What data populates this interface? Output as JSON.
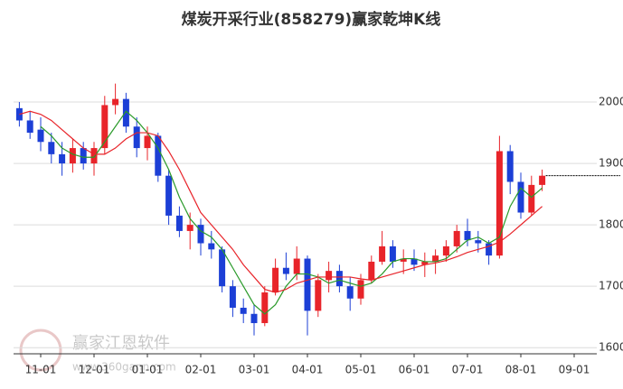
{
  "chart_data": {
    "type": "candlestick",
    "title": "煤炭开采行业(858279)赢家乾坤K线",
    "watermark": "赢家江恩软件",
    "watermark_url": "www.360gann.com",
    "categories": [
      null,
      null,
      "11-01",
      null,
      null,
      null,
      null,
      "12-01",
      null,
      null,
      null,
      null,
      "01-01",
      null,
      null,
      null,
      null,
      "02-01",
      null,
      null,
      null,
      null,
      "03-01",
      null,
      null,
      null,
      null,
      "04-01",
      null,
      null,
      null,
      null,
      "05-01",
      null,
      null,
      null,
      null,
      "06-01",
      null,
      null,
      null,
      null,
      "07-01",
      null,
      null,
      null,
      null,
      "08-01",
      null,
      null,
      null,
      null,
      "09-01"
    ],
    "open": [
      1990,
      1970,
      1955,
      1935,
      1915,
      1900,
      1925,
      1900,
      1925,
      1995,
      2005,
      1960,
      1925,
      1945,
      1880,
      1815,
      1790,
      1800,
      1770,
      1760,
      1700,
      1665,
      1655,
      1640,
      1690,
      1730,
      1720,
      1745,
      1660,
      1710,
      1725,
      1700,
      1680,
      1710,
      1740,
      1765,
      1740,
      1745,
      1735,
      1740,
      1750,
      1765,
      1790,
      1775,
      1770,
      1750,
      1920,
      1870,
      1820,
      1865,
      null,
      null,
      null
    ],
    "high": [
      2000,
      1985,
      1975,
      1950,
      1935,
      1940,
      1935,
      1935,
      2010,
      2030,
      2015,
      1975,
      1960,
      1950,
      1890,
      1830,
      1820,
      1810,
      1790,
      1765,
      1710,
      1680,
      1670,
      1700,
      1745,
      1755,
      1765,
      1750,
      1720,
      1740,
      1735,
      1715,
      1720,
      1750,
      1790,
      1775,
      1760,
      1760,
      1755,
      1760,
      1775,
      1800,
      1810,
      1790,
      1775,
      1945,
      1930,
      1885,
      1880,
      1890,
      null,
      null,
      null
    ],
    "low": [
      1960,
      1940,
      1920,
      1900,
      1880,
      1885,
      1890,
      1880,
      1915,
      1980,
      1950,
      1910,
      1905,
      1870,
      1800,
      1780,
      1760,
      1750,
      1745,
      1690,
      1650,
      1640,
      1620,
      1635,
      1685,
      1710,
      1710,
      1620,
      1650,
      1690,
      1690,
      1660,
      1670,
      1705,
      1735,
      1730,
      1720,
      1725,
      1715,
      1720,
      1740,
      1755,
      1765,
      1755,
      1735,
      1745,
      1850,
      1810,
      1815,
      1855,
      null,
      null,
      null
    ],
    "close": [
      1970,
      1950,
      1935,
      1915,
      1900,
      1925,
      1900,
      1925,
      1995,
      2005,
      1960,
      1925,
      1945,
      1880,
      1815,
      1790,
      1800,
      1770,
      1760,
      1700,
      1665,
      1655,
      1640,
      1690,
      1730,
      1720,
      1745,
      1660,
      1710,
      1725,
      1700,
      1680,
      1710,
      1740,
      1765,
      1740,
      1745,
      1735,
      1740,
      1750,
      1765,
      1790,
      1775,
      1770,
      1750,
      1920,
      1870,
      1820,
      1865,
      1880,
      null,
      null,
      null
    ],
    "up_color": "#e8242a",
    "down_color": "#1c3fd6",
    "series": [
      {
        "color": "#2a9a2a",
        "values": [
          null,
          null,
          1960,
          1945,
          1925,
          1915,
          1910,
          1910,
          1935,
          1960,
          1985,
          1970,
          1950,
          1925,
          1890,
          1845,
          1810,
          1790,
          1780,
          1760,
          1730,
          1700,
          1670,
          1655,
          1670,
          1700,
          1720,
          1720,
          1715,
          1705,
          1710,
          1705,
          1700,
          1705,
          1720,
          1740,
          1745,
          1745,
          1740,
          1740,
          1745,
          1760,
          1775,
          1780,
          1770,
          1780,
          1830,
          1860,
          1845,
          1860,
          null,
          null,
          null
        ]
      },
      {
        "color": "#e8242a",
        "values": [
          1980,
          1985,
          1980,
          1970,
          1955,
          1940,
          1925,
          1915,
          1915,
          1925,
          1940,
          1950,
          1950,
          1945,
          1920,
          1890,
          1855,
          1820,
          1800,
          1780,
          1760,
          1735,
          1715,
          1695,
          1690,
          1695,
          1705,
          1710,
          1715,
          1715,
          1715,
          1715,
          1712,
          1710,
          1715,
          1720,
          1725,
          1730,
          1735,
          1738,
          1742,
          1748,
          1755,
          1760,
          1765,
          1772,
          1785,
          1800,
          1815,
          1830,
          null,
          null,
          null
        ]
      }
    ],
    "ylim": [
      1590,
      2100
    ],
    "yticks": [
      1600,
      1700,
      1800,
      1900,
      2000
    ],
    "grid": true
  }
}
